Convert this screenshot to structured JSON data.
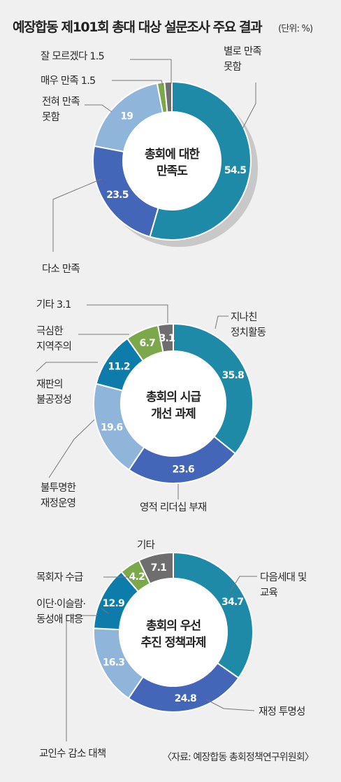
{
  "title": "예장합동 제101회 총대 대상 설문조사 주요 결과",
  "unit": "(단위: %)",
  "source": "〈자료: 예장합동 총회정책연구위원회〉",
  "colors": {
    "teal": "#1f8aa8",
    "blue": "#4466b8",
    "lightblue": "#8fb5da",
    "darkteal": "#0e7cab",
    "green": "#7aa84a",
    "gray": "#6e6e6e"
  },
  "chart_data": [
    {
      "type": "pie",
      "donut": true,
      "center_label": [
        "총회에 대한",
        "만족도"
      ],
      "slices": [
        {
          "label": "별로 만족 못함",
          "value": 54.5,
          "value_text": "54.5",
          "color": "#1f8aa8",
          "label_lines": [
            "별로 만족",
            "못함"
          ]
        },
        {
          "label": "다소 만족",
          "value": 23.5,
          "value_text": "23.5",
          "color": "#4466b8",
          "label_lines": [
            "다소 만족"
          ]
        },
        {
          "label": "전혀 만족 못함",
          "value": 19,
          "value_text": "19",
          "color": "#8fb5da",
          "label_lines": [
            "전혀 만족",
            "못함"
          ]
        },
        {
          "label": "매우 만족",
          "value": 1.5,
          "value_text": "1.5",
          "color": "#7aa84a",
          "label_lines": [
            "매우 만족 1.5"
          ]
        },
        {
          "label": "잘 모르겠다",
          "value": 1.5,
          "value_text": "1.5",
          "color": "#6e6e6e",
          "label_lines": [
            "잘 모르겠다 1.5"
          ]
        }
      ]
    },
    {
      "type": "pie",
      "donut": true,
      "center_label": [
        "총회의 시급",
        "개선 과제"
      ],
      "slices": [
        {
          "label": "지나친 정치활동",
          "value": 35.8,
          "value_text": "35.8",
          "color": "#1f8aa8",
          "label_lines": [
            "지나친",
            "정치활동"
          ]
        },
        {
          "label": "영적 리더십 부재",
          "value": 23.6,
          "value_text": "23.6",
          "color": "#4466b8",
          "label_lines": [
            "영적 리더십 부재"
          ]
        },
        {
          "label": "불투명한 재정운영",
          "value": 19.6,
          "value_text": "19.6",
          "color": "#8fb5da",
          "label_lines": [
            "불투명한",
            "재정운영"
          ]
        },
        {
          "label": "재판의 불공정성",
          "value": 11.2,
          "value_text": "11.2",
          "color": "#0e7cab",
          "label_lines": [
            "재판의",
            "불공정성"
          ]
        },
        {
          "label": "극심한 지역주의",
          "value": 6.7,
          "value_text": "6.7",
          "color": "#7aa84a",
          "label_lines": [
            "극심한",
            "지역주의"
          ]
        },
        {
          "label": "기타",
          "value": 3.1,
          "value_text": "3.1",
          "color": "#6e6e6e",
          "label_lines": [
            "기타 3.1"
          ]
        }
      ]
    },
    {
      "type": "pie",
      "donut": true,
      "center_label": [
        "총회의 우선",
        "추진 정책과제"
      ],
      "slices": [
        {
          "label": "다음세대 및 교육",
          "value": 34.7,
          "value_text": "34.7",
          "color": "#1f8aa8",
          "label_lines": [
            "다음세대 및",
            "교육"
          ]
        },
        {
          "label": "재정 투명성",
          "value": 24.8,
          "value_text": "24.8",
          "color": "#4466b8",
          "label_lines": [
            "재정 투명성"
          ]
        },
        {
          "label": "교인수 감소 대책",
          "value": 16.3,
          "value_text": "16.3",
          "color": "#8fb5da",
          "label_lines": [
            "교인수 감소 대책"
          ]
        },
        {
          "label": "이단·이슬람·동성애 대응",
          "value": 12.9,
          "value_text": "12.9",
          "color": "#0e7cab",
          "label_lines": [
            "이단·이슬람·",
            "동성애 대응"
          ]
        },
        {
          "label": "목회자 수급",
          "value": 4.2,
          "value_text": "4.2",
          "color": "#7aa84a",
          "label_lines": [
            "목회자 수급"
          ]
        },
        {
          "label": "기타",
          "value": 7.1,
          "value_text": "7.1",
          "color": "#6e6e6e",
          "label_lines": [
            "기타"
          ]
        }
      ]
    }
  ]
}
